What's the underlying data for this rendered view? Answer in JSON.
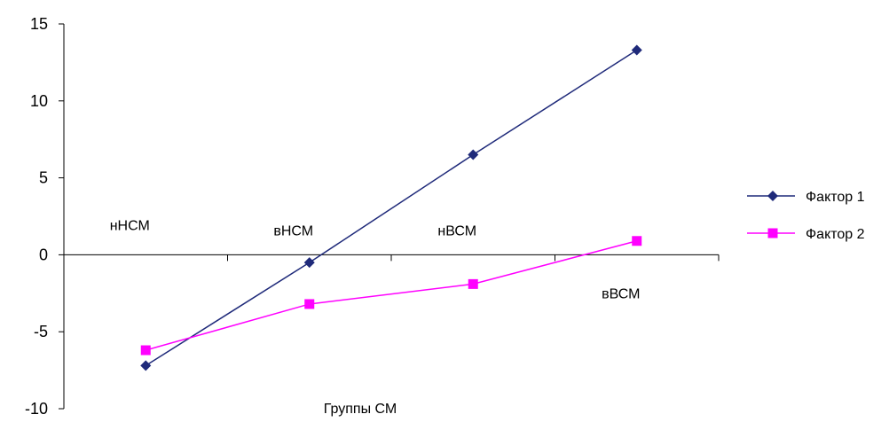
{
  "chart_data": {
    "type": "line",
    "title": "",
    "xlabel": "Группы СМ",
    "ylabel": "",
    "ylim": [
      -10,
      15
    ],
    "yticks": [
      15,
      10,
      5,
      0,
      -5,
      -10
    ],
    "ytick_labels": [
      "15",
      "10",
      "5",
      "0",
      "-5",
      "-10"
    ],
    "categories": [
      "нНСМ",
      "вНСМ",
      "нВСМ",
      "вВСМ"
    ],
    "series": [
      {
        "name": "Фактор 1",
        "color": "#1f2a7a",
        "marker": "diamond",
        "values": [
          -7.2,
          -0.5,
          6.5,
          13.3
        ]
      },
      {
        "name": "Фактор 2",
        "color": "#ff00ff",
        "marker": "square",
        "values": [
          -6.2,
          -3.2,
          -1.9,
          0.9
        ]
      }
    ],
    "legend": "right",
    "grid": false
  }
}
